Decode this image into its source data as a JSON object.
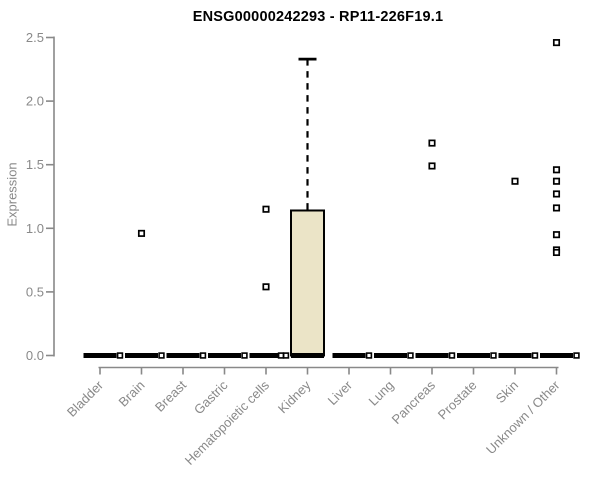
{
  "chart_data": {
    "type": "boxplot",
    "title": "ENSG00000242293 - RP11-226F19.1",
    "ylabel": "Expression",
    "xlabel": "",
    "ylim": [
      0,
      2.5
    ],
    "yticks": [
      0.0,
      0.5,
      1.0,
      1.5,
      2.0,
      2.5
    ],
    "grid": false,
    "legend": "none",
    "colors": {
      "box_fill": "#ebe4c7",
      "box_stroke": "#000000",
      "axis": "#898989",
      "tick_text": "#898989",
      "title_text": "#000000",
      "marks": "#000000",
      "outlier_fill": "#ffffff"
    },
    "categories": [
      "Bladder",
      "Brain",
      "Breast",
      "Gastric",
      "Hematopoietic cells",
      "Kidney",
      "Liver",
      "Lung",
      "Pancreas",
      "Prostate",
      "Skin",
      "Unknown / Other"
    ],
    "series": [
      {
        "category": "Bladder",
        "box": {
          "whisker_low": 0,
          "q1": 0,
          "median": 0,
          "q3": 0,
          "whisker_high": 0
        },
        "zero_cluster": true,
        "stray_side": "right",
        "outliers": []
      },
      {
        "category": "Brain",
        "box": {
          "whisker_low": 0,
          "q1": 0,
          "median": 0,
          "q3": 0,
          "whisker_high": 0
        },
        "zero_cluster": true,
        "stray_side": "right",
        "outliers": [
          0.96
        ]
      },
      {
        "category": "Breast",
        "box": {
          "whisker_low": 0,
          "q1": 0,
          "median": 0,
          "q3": 0,
          "whisker_high": 0
        },
        "zero_cluster": true,
        "stray_side": "right",
        "outliers": []
      },
      {
        "category": "Gastric",
        "box": {
          "whisker_low": 0,
          "q1": 0,
          "median": 0,
          "q3": 0,
          "whisker_high": 0
        },
        "zero_cluster": true,
        "stray_side": "right",
        "outliers": []
      },
      {
        "category": "Hematopoietic cells",
        "box": {
          "whisker_low": 0,
          "q1": 0,
          "median": 0,
          "q3": 0,
          "whisker_high": 0
        },
        "zero_cluster": true,
        "stray_side": "right",
        "outliers": [
          1.15,
          0.54
        ]
      },
      {
        "category": "Kidney",
        "box": {
          "whisker_low": 0,
          "q1": 0,
          "median": 0,
          "q3": 1.14,
          "whisker_high": 2.33
        },
        "zero_cluster": true,
        "stray_side": "left",
        "outliers": []
      },
      {
        "category": "Liver",
        "box": {
          "whisker_low": 0,
          "q1": 0,
          "median": 0,
          "q3": 0,
          "whisker_high": 0
        },
        "zero_cluster": true,
        "stray_side": "right",
        "outliers": []
      },
      {
        "category": "Lung",
        "box": {
          "whisker_low": 0,
          "q1": 0,
          "median": 0,
          "q3": 0,
          "whisker_high": 0
        },
        "zero_cluster": true,
        "stray_side": "right",
        "outliers": []
      },
      {
        "category": "Pancreas",
        "box": {
          "whisker_low": 0,
          "q1": 0,
          "median": 0,
          "q3": 0,
          "whisker_high": 0
        },
        "zero_cluster": true,
        "stray_side": "right",
        "outliers": [
          1.67,
          1.49
        ]
      },
      {
        "category": "Prostate",
        "box": {
          "whisker_low": 0,
          "q1": 0,
          "median": 0,
          "q3": 0,
          "whisker_high": 0
        },
        "zero_cluster": true,
        "stray_side": "right",
        "outliers": []
      },
      {
        "category": "Skin",
        "box": {
          "whisker_low": 0,
          "q1": 0,
          "median": 0,
          "q3": 0,
          "whisker_high": 0
        },
        "zero_cluster": true,
        "stray_side": "right",
        "outliers": [
          1.37
        ]
      },
      {
        "category": "Unknown / Other",
        "box": {
          "whisker_low": 0,
          "q1": 0,
          "median": 0,
          "q3": 0,
          "whisker_high": 0
        },
        "zero_cluster": true,
        "stray_side": "right",
        "outliers": [
          2.46,
          1.46,
          1.37,
          1.27,
          1.16,
          0.95,
          0.83,
          0.81
        ]
      }
    ]
  }
}
